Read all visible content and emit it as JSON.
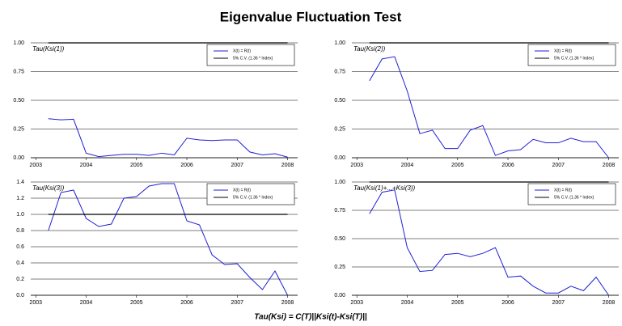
{
  "title": "Eigenvalue Fluctuation Test",
  "footnote": "Tau(Ksi) = C(T)||Ksi(t)-Ksi(T)||",
  "chart_data": [
    {
      "type": "line",
      "title": "Tau(Ksi(1))",
      "x": [
        2003.25,
        2003.5,
        2003.75,
        2004,
        2004.25,
        2004.5,
        2004.75,
        2005,
        2005.25,
        2005.5,
        2005.75,
        2006,
        2006.25,
        2006.5,
        2006.75,
        2007,
        2007.25,
        2007.5,
        2007.75,
        2008
      ],
      "xlim": [
        2002.9,
        2008.2
      ],
      "xticks": [
        2003,
        2004,
        2005,
        2006,
        2007,
        2008
      ],
      "ylim": [
        0,
        1
      ],
      "yticks": [
        {
          "value": 0,
          "label": "0.00"
        },
        0.25,
        {
          "value": 0.5,
          "label": "0.50"
        },
        0.75,
        {
          "value": 1,
          "label": "1.00"
        }
      ],
      "grid": true,
      "legend": "upper right",
      "series": [
        {
          "name": "X(t) = R(t)",
          "color": "#1f1fd6",
          "values": [
            0.34,
            0.33,
            0.335,
            0.04,
            0.01,
            0.02,
            0.03,
            0.03,
            0.02,
            0.04,
            0.025,
            0.17,
            0.155,
            0.15,
            0.155,
            0.155,
            0.05,
            0.025,
            0.035,
            0.005
          ]
        },
        {
          "name": "5% C.V. (1.36 * Index)",
          "color": "#000000",
          "values": [
            1,
            1,
            1,
            1,
            1,
            1,
            1,
            1,
            1,
            1,
            1,
            1,
            1,
            1,
            1,
            1,
            1,
            1,
            1,
            1
          ]
        }
      ]
    },
    {
      "type": "line",
      "title": "Tau(Ksi(2))",
      "x": [
        2003.25,
        2003.5,
        2003.75,
        2004,
        2004.25,
        2004.5,
        2004.75,
        2005,
        2005.25,
        2005.5,
        2005.75,
        2006,
        2006.25,
        2006.5,
        2006.75,
        2007,
        2007.25,
        2007.5,
        2007.75,
        2008
      ],
      "xlim": [
        2002.9,
        2008.2
      ],
      "xticks": [
        2003,
        2004,
        2005,
        2006,
        2007,
        2008
      ],
      "ylim": [
        0,
        1
      ],
      "yticks": [
        {
          "value": 0,
          "label": "0.00"
        },
        0.25,
        {
          "value": 0.5,
          "label": "0.50"
        },
        0.75,
        {
          "value": 1,
          "label": "1.00"
        }
      ],
      "grid": true,
      "legend": "upper right",
      "series": [
        {
          "name": "X(t) = R(t)",
          "color": "#1f1fd6",
          "values": [
            0.67,
            0.86,
            0.88,
            0.58,
            0.21,
            0.24,
            0.08,
            0.08,
            0.24,
            0.28,
            0.02,
            0.06,
            0.07,
            0.16,
            0.13,
            0.13,
            0.17,
            0.14,
            0.14,
            0.0
          ]
        },
        {
          "name": "5% C.V. (1.36 * Index)",
          "color": "#000000",
          "values": [
            1,
            1,
            1,
            1,
            1,
            1,
            1,
            1,
            1,
            1,
            1,
            1,
            1,
            1,
            1,
            1,
            1,
            1,
            1,
            1
          ]
        }
      ]
    },
    {
      "type": "line",
      "title": "Tau(Ksi(3))",
      "x": [
        2003.25,
        2003.5,
        2003.75,
        2004,
        2004.25,
        2004.5,
        2004.75,
        2005,
        2005.25,
        2005.5,
        2005.75,
        2006,
        2006.25,
        2006.5,
        2006.75,
        2007,
        2007.25,
        2007.5,
        2007.75,
        2008
      ],
      "xlim": [
        2002.9,
        2008.2
      ],
      "xticks": [
        2003,
        2004,
        2005,
        2006,
        2007,
        2008
      ],
      "ylim": [
        0,
        1.4
      ],
      "yticks": [
        {
          "value": 0,
          "label": "0.0"
        },
        0.2,
        0.4,
        0.6,
        0.8,
        {
          "value": 1,
          "label": "1.0"
        },
        1.2,
        1.4
      ],
      "grid": true,
      "legend": "upper right",
      "series": [
        {
          "name": "X(t) = R(t)",
          "color": "#1f1fd6",
          "values": [
            0.8,
            1.27,
            1.3,
            0.95,
            0.85,
            0.88,
            1.2,
            1.22,
            1.35,
            1.38,
            1.38,
            0.92,
            0.87,
            0.5,
            0.38,
            0.39,
            0.22,
            0.07,
            0.3,
            0.0
          ]
        },
        {
          "name": "5% C.V. (1.36 * Index)",
          "color": "#000000",
          "values": [
            1,
            1,
            1,
            1,
            1,
            1,
            1,
            1,
            1,
            1,
            1,
            1,
            1,
            1,
            1,
            1,
            1,
            1,
            1,
            1
          ]
        }
      ]
    },
    {
      "type": "line",
      "title": "Tau(Ksi(1)+...+Ksi(3))",
      "x": [
        2003.25,
        2003.5,
        2003.75,
        2004,
        2004.25,
        2004.5,
        2004.75,
        2005,
        2005.25,
        2005.5,
        2005.75,
        2006,
        2006.25,
        2006.5,
        2006.75,
        2007,
        2007.25,
        2007.5,
        2007.75,
        2008
      ],
      "xlim": [
        2002.9,
        2008.2
      ],
      "xticks": [
        2003,
        2004,
        2005,
        2006,
        2007,
        2008
      ],
      "ylim": [
        0,
        1
      ],
      "yticks": [
        {
          "value": 0,
          "label": "0.00"
        },
        0.25,
        {
          "value": 0.5,
          "label": "0.50"
        },
        0.75,
        {
          "value": 1,
          "label": "1.00"
        }
      ],
      "grid": true,
      "legend": "upper right",
      "series": [
        {
          "name": "X(t) = R(t)",
          "color": "#1f1fd6",
          "values": [
            0.72,
            0.91,
            0.93,
            0.42,
            0.21,
            0.22,
            0.36,
            0.37,
            0.34,
            0.37,
            0.42,
            0.16,
            0.17,
            0.08,
            0.02,
            0.02,
            0.08,
            0.04,
            0.16,
            0.0
          ]
        },
        {
          "name": "5% C.V. (1.36 * Index)",
          "color": "#000000",
          "values": [
            1,
            1,
            1,
            1,
            1,
            1,
            1,
            1,
            1,
            1,
            1,
            1,
            1,
            1,
            1,
            1,
            1,
            1,
            1,
            1
          ]
        }
      ]
    }
  ]
}
